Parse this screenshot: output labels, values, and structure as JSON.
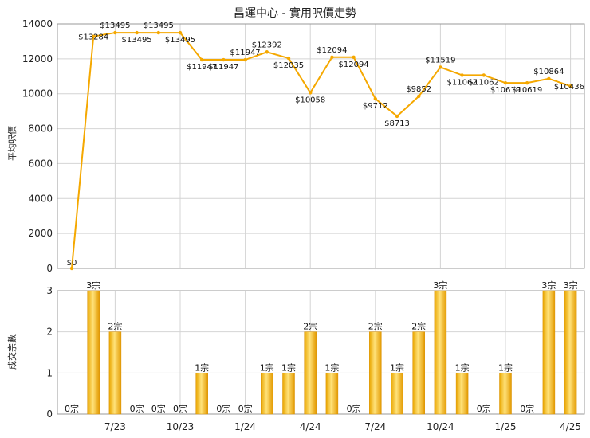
{
  "chart_data": [
    {
      "type": "line",
      "title": "昌運中心 - 實用呎價走勢",
      "ylabel": "平均呎價",
      "ylim": [
        0,
        14000
      ],
      "yticks": [
        "0",
        "2000",
        "4000",
        "6000",
        "8000",
        "10000",
        "12000",
        "14000"
      ],
      "color": "#f5a800",
      "series": [
        {
          "values": [
            0,
            13284,
            13495,
            13495,
            13495,
            13495,
            11947,
            11947,
            11947,
            12392,
            12035,
            10058,
            12094,
            12094,
            9712,
            8713,
            9852,
            11519,
            11062,
            11062,
            10619,
            10619,
            10864,
            10436
          ],
          "labels": [
            "$0",
            "$13284",
            "$13495",
            "$13495",
            "$13495",
            "$13495",
            "$11947",
            "$11947",
            "$11947",
            "$12392",
            "$12035",
            "$10058",
            "$12094",
            "$12094",
            "$9712",
            "$8713",
            "$9852",
            "$11519",
            "$11062",
            "$11062",
            "$10619",
            "$10619",
            "$10864",
            "$10436"
          ]
        }
      ]
    },
    {
      "type": "bar",
      "ylabel": "成交宗數",
      "ylim": [
        0,
        3
      ],
      "yticks": [
        "0",
        "1",
        "2",
        "3"
      ],
      "categories": [
        "7/23",
        "10/23",
        "1/24",
        "4/24",
        "7/24",
        "10/24",
        "1/25",
        "4/25"
      ],
      "values": [
        0,
        3,
        2,
        0,
        0,
        0,
        1,
        0,
        0,
        1,
        1,
        2,
        1,
        0,
        2,
        1,
        2,
        3,
        1,
        0,
        1,
        0,
        3,
        3
      ],
      "labels": [
        "0宗",
        "3宗",
        "2宗",
        "0宗",
        "0宗",
        "0宗",
        "1宗",
        "0宗",
        "0宗",
        "1宗",
        "1宗",
        "2宗",
        "1宗",
        "0宗",
        "2宗",
        "1宗",
        "2宗",
        "3宗",
        "1宗",
        "0宗",
        "1宗",
        "0宗",
        "3宗",
        "3宗"
      ]
    }
  ]
}
